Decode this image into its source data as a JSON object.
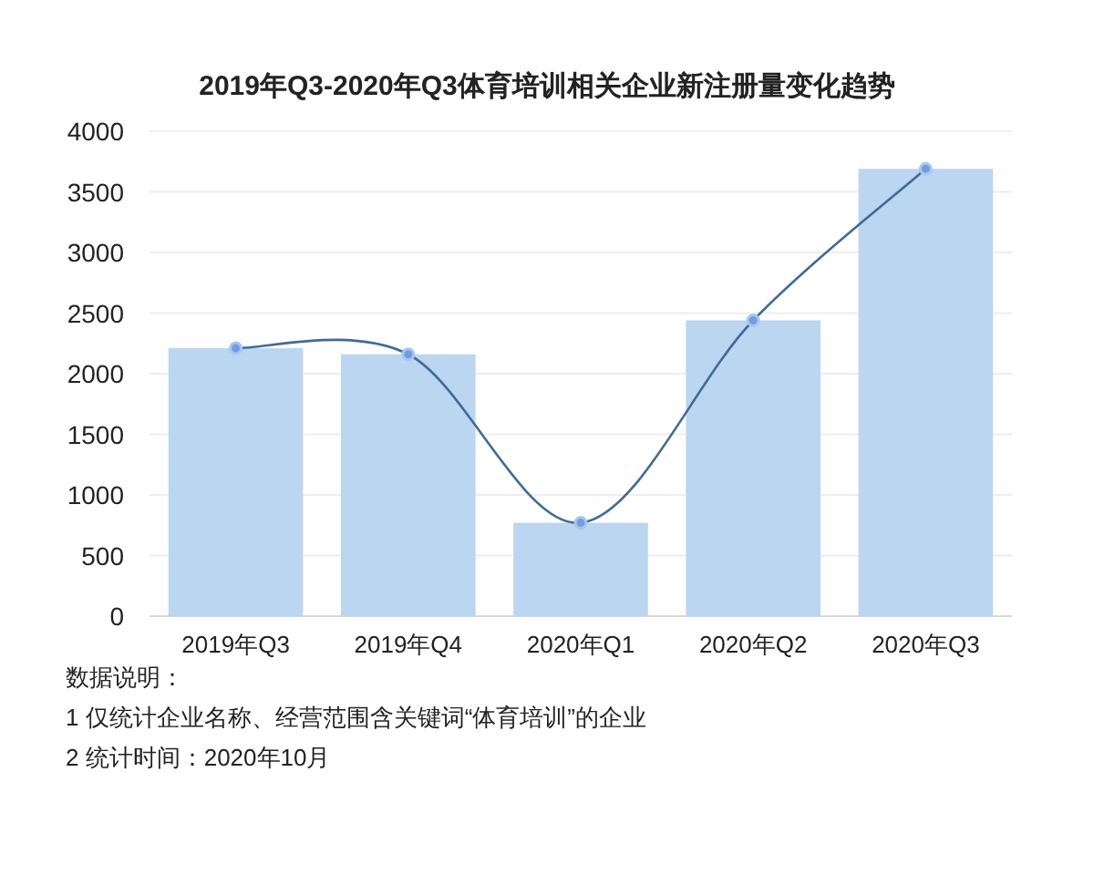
{
  "chart_data": {
    "type": "bar",
    "title": "2019年Q3-2020年Q3体育培训相关企业新注册量变化趋势",
    "categories": [
      "2019年Q3",
      "2019年Q4",
      "2020年Q1",
      "2020年Q2",
      "2020年Q3"
    ],
    "series": [
      {
        "color": "#bad6f0",
        "values": [
          2210,
          2160,
          770,
          2440,
          3690
        ]
      },
      {
        "type": "line",
        "color": "#3f6b96",
        "values": [
          2210,
          2160,
          770,
          2440,
          3690
        ]
      }
    ],
    "ylim": [
      0,
      4000
    ],
    "yticks": [
      0,
      500,
      1000,
      1500,
      2000,
      2500,
      3000,
      3500,
      4000
    ],
    "grid": "y",
    "marker": "circle",
    "annotations": [
      "数据说明：",
      "1 仅统计企业名称、经营范围含关键词“体育培训”的企业",
      "2 统计时间：2020年10月"
    ]
  }
}
